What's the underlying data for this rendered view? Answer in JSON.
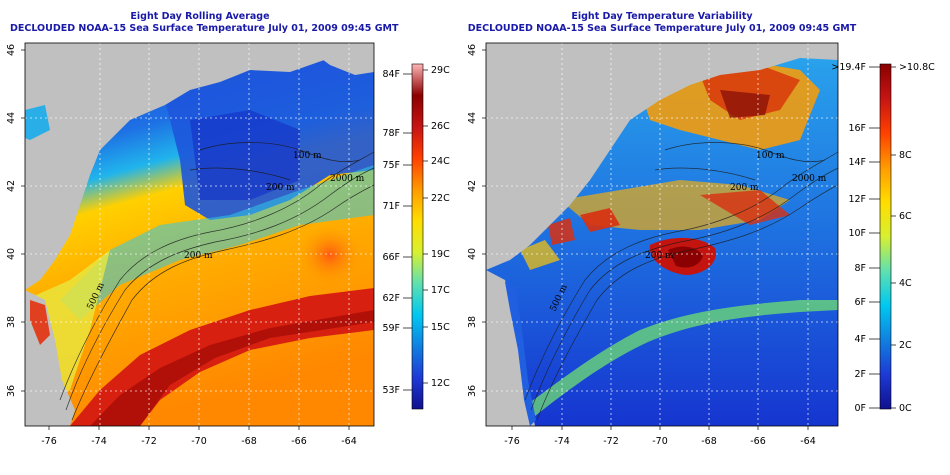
{
  "panels": [
    {
      "title_line1": "Eight Day Rolling Average",
      "title_line2": "DECLOUDED NOAA-15 Sea Surface Temperature July 01, 2009 09:45 GMT",
      "colorbar": {
        "gradient": [
          "#ffb6b6",
          "#8b0000",
          "#c61414",
          "#ff4000",
          "#ff9b00",
          "#ffdd00",
          "#d8f030",
          "#60e0b0",
          "#00c8f0",
          "#1080e0",
          "#1d3ad6",
          "#10108e"
        ],
        "f_labels": [
          "84F",
          "78F",
          "75F",
          "71F",
          "66F",
          "62F",
          "59F",
          "53F"
        ],
        "c_labels": [
          "29C",
          "26C",
          "24C",
          "22C",
          "19C",
          "17C",
          "15C",
          "12C"
        ]
      }
    },
    {
      "title_line1": "Eight Day Temperature Variability",
      "title_line2": "DECLOUDED NOAA-15 Sea Surface Temperature July 01, 2009 09:45 GMT",
      "colorbar": {
        "gradient": [
          "#8b0000",
          "#c61414",
          "#ff4000",
          "#ff9b00",
          "#ffdd00",
          "#d8f030",
          "#60e0b0",
          "#00c8f0",
          "#1080e0",
          "#1d3ad6",
          "#10108e"
        ],
        "f_labels": [
          ">19.4F",
          "16F",
          "14F",
          "12F",
          "10F",
          "8F",
          "6F",
          "4F",
          "2F",
          "0F"
        ],
        "c_labels": [
          ">10.8C",
          "8C",
          "6C",
          "4C",
          "2C",
          "0C"
        ]
      }
    }
  ],
  "lon_ticks": [
    "-76",
    "-74",
    "-72",
    "-70",
    "-68",
    "-66",
    "-64"
  ],
  "lat_ticks": [
    "46",
    "44",
    "42",
    "40",
    "38",
    "36"
  ],
  "contour_labels": [
    "100 m",
    "2000 m",
    "200 m",
    "200 m",
    "500 m"
  ],
  "contour_labels_right": [
    "100 m",
    "2000 m",
    "200 m",
    "200 m",
    "500 m"
  ],
  "colors": {
    "land": "#c0c0c0",
    "title": "#1a1aa8",
    "grid": "#ffffff"
  }
}
